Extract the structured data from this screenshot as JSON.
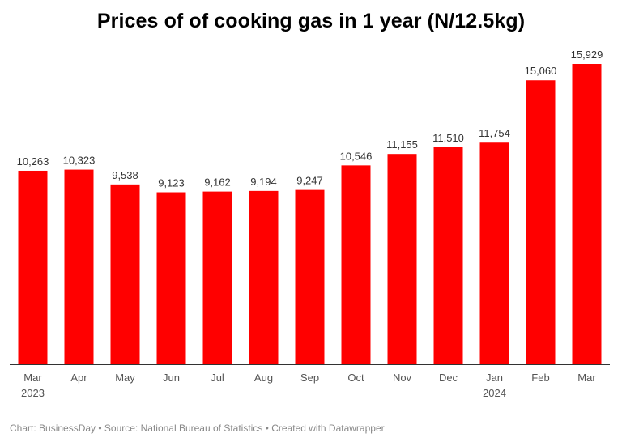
{
  "chart_data": {
    "type": "bar",
    "title": "Prices of of cooking gas in 1 year (N/12.5kg)",
    "categories": [
      "Mar",
      "Apr",
      "May",
      "Jun",
      "Jul",
      "Aug",
      "Sep",
      "Oct",
      "Nov",
      "Dec",
      "Jan",
      "Feb",
      "Mar"
    ],
    "year_labels": [
      "2023",
      "",
      "",
      "",
      "",
      "",
      "",
      "",
      "",
      "",
      "2024",
      "",
      ""
    ],
    "values": [
      10263,
      10323,
      9538,
      9123,
      9162,
      9194,
      9247,
      10546,
      11155,
      11510,
      11754,
      15060,
      15929
    ],
    "value_labels": [
      "10,263",
      "10,323",
      "9,538",
      "9,123",
      "9,162",
      "9,194",
      "9,247",
      "10,546",
      "11,155",
      "11,510",
      "11,754",
      "15,060",
      "15,929"
    ],
    "xlabel": "",
    "ylabel": "",
    "ylim": [
      0,
      15929
    ],
    "bar_color": "#ff0000",
    "grid": false
  },
  "footer": "Chart: BusinessDay • Source: National Bureau of Statistics • Created with Datawrapper"
}
